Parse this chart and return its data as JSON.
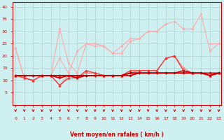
{
  "x": [
    0,
    1,
    2,
    3,
    4,
    5,
    6,
    7,
    8,
    9,
    10,
    11,
    12,
    13,
    14,
    15,
    16,
    17,
    18,
    19,
    20,
    21,
    22,
    23
  ],
  "series": [
    {
      "color": "#ffaaaa",
      "lw": 0.8,
      "marker": "D",
      "ms": 2.0,
      "values": [
        23,
        11,
        10,
        12,
        12,
        31,
        17,
        13,
        25,
        25,
        24,
        21,
        21,
        26,
        27,
        30,
        30,
        33,
        34,
        31,
        31,
        37,
        22,
        25
      ]
    },
    {
      "color": "#ffaaaa",
      "lw": 0.8,
      "marker": "D",
      "ms": 2.0,
      "values": [
        23,
        11,
        10,
        12,
        12,
        19,
        13,
        22,
        25,
        24,
        24,
        21,
        24,
        27,
        27,
        30,
        30,
        33,
        null,
        31,
        31,
        null,
        25,
        25
      ]
    },
    {
      "color": "#ff7777",
      "lw": 0.8,
      "marker": "D",
      "ms": 2.0,
      "values": [
        12,
        11,
        10,
        12,
        12,
        8,
        12,
        11,
        13,
        13,
        12,
        12,
        12,
        13,
        14,
        14,
        14,
        19,
        20,
        15,
        13,
        null,
        12,
        13
      ]
    },
    {
      "color": "#ee3333",
      "lw": 0.9,
      "marker": "^",
      "ms": 3.0,
      "values": [
        12,
        11,
        10,
        12,
        12,
        8,
        11,
        11,
        14,
        13,
        12,
        12,
        12,
        14,
        14,
        14,
        14,
        19,
        20,
        14,
        13,
        null,
        12,
        13
      ]
    },
    {
      "color": "#cc0000",
      "lw": 1.2,
      "marker": "D",
      "ms": 2.0,
      "values": [
        12,
        12,
        12,
        12,
        12,
        12,
        12,
        12,
        12,
        12,
        12,
        12,
        12,
        13,
        13,
        13,
        13,
        13,
        13,
        13,
        13,
        13,
        13,
        13
      ]
    },
    {
      "color": "#cc0000",
      "lw": 1.2,
      "marker": "D",
      "ms": 2.0,
      "values": [
        12,
        12,
        12,
        12,
        12,
        12,
        12,
        12,
        12,
        12,
        12,
        12,
        12,
        13,
        13,
        13,
        13,
        13,
        13,
        13,
        13,
        13,
        12,
        13
      ]
    },
    {
      "color": "#cc0000",
      "lw": 1.2,
      "marker": "D",
      "ms": 2.0,
      "values": [
        12,
        12,
        12,
        12,
        12,
        11,
        12,
        11,
        12,
        12,
        12,
        12,
        12,
        12,
        13,
        13,
        13,
        13,
        13,
        14,
        13,
        13,
        12,
        13
      ]
    }
  ],
  "xlabel": "Vent moyen/en rafales ( km/h )",
  "xlim": [
    -0.3,
    23.3
  ],
  "ylim": [
    0,
    42
  ],
  "yticks": [
    5,
    10,
    15,
    20,
    25,
    30,
    35,
    40
  ],
  "xticks": [
    0,
    1,
    2,
    3,
    4,
    5,
    6,
    7,
    8,
    9,
    10,
    11,
    12,
    13,
    14,
    15,
    16,
    17,
    18,
    19,
    20,
    21,
    22,
    23
  ],
  "bg_color": "#cef0f0",
  "grid_color": "#aacccc",
  "xlabel_color": "#cc0000",
  "tick_color": "#cc0000",
  "arrow_color": "#cc0000",
  "axis_line_color": "#cc0000"
}
